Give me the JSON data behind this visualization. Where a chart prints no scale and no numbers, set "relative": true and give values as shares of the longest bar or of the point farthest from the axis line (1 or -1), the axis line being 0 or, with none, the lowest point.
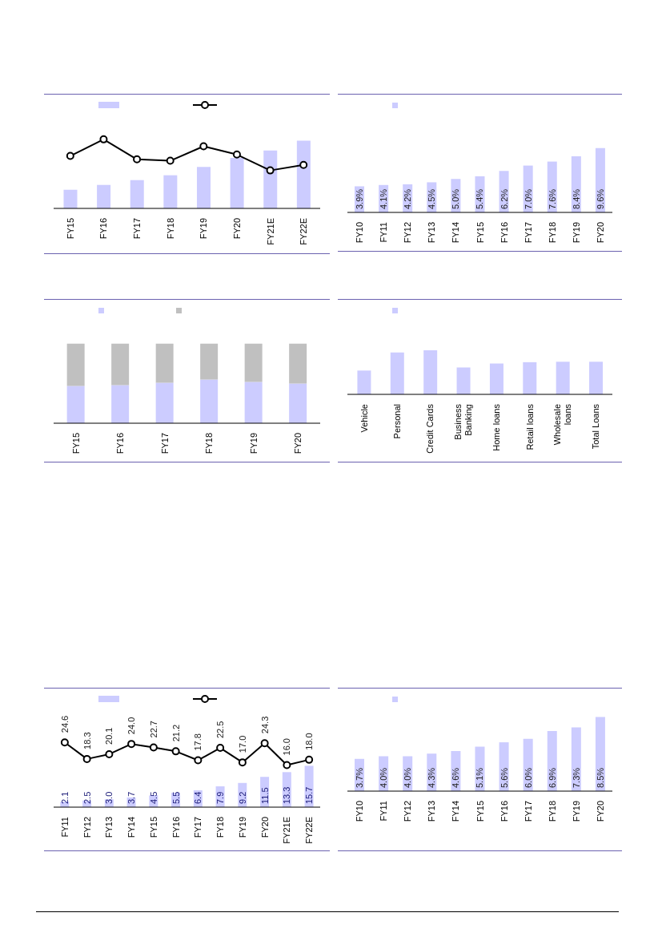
{
  "chart_data": [
    {
      "type": "bar",
      "relative": true,
      "marker": "circle",
      "line_style": "solid",
      "categories": [
        "FY15",
        "FY16",
        "FY17",
        "FY18",
        "FY19",
        "FY20",
        "FY21E",
        "FY22E"
      ],
      "series": [
        {
          "type": "bar",
          "color": "#ccccff",
          "values": [
            0.27,
            0.34,
            0.41,
            0.48,
            0.6,
            0.73,
            0.84,
            0.98
          ]
        },
        {
          "type": "line",
          "color": "#000000",
          "values": [
            0.76,
            1.0,
            0.71,
            0.69,
            0.9,
            0.78,
            0.55,
            0.63
          ]
        }
      ]
    },
    {
      "type": "bar",
      "data_labels": true,
      "tick_labels": "x",
      "categories": [
        "FY10",
        "FY11",
        "FY12",
        "FY13",
        "FY14",
        "FY15",
        "FY16",
        "FY17",
        "FY18",
        "FY19",
        "FY20"
      ],
      "series": [
        {
          "type": "bar",
          "color": "#ccccff",
          "values": [
            3.9,
            4.1,
            4.2,
            4.5,
            5.0,
            5.4,
            6.2,
            7.0,
            7.6,
            8.4,
            9.6
          ],
          "value_labels": [
            "3.9%",
            "4.1%",
            "4.2%",
            "4.5%",
            "5.0%",
            "5.4%",
            "6.2%",
            "7.0%",
            "7.6%",
            "8.4%",
            "9.6%"
          ]
        }
      ]
    },
    {
      "type": "bar",
      "relative": true,
      "stacked": true,
      "categories": [
        "FY15",
        "FY16",
        "FY17",
        "FY18",
        "FY19",
        "FY20"
      ],
      "series": [
        {
          "color": "#ccccff",
          "values": [
            0.47,
            0.48,
            0.51,
            0.55,
            0.52,
            0.5
          ]
        },
        {
          "color": "#c0c0c0",
          "values": [
            0.53,
            0.52,
            0.49,
            0.45,
            0.48,
            0.5
          ]
        }
      ]
    },
    {
      "type": "bar",
      "relative": true,
      "categories": [
        "Vehicle",
        "Personal",
        "Credit Cards",
        "Business Banking",
        "Home loans",
        "Retail loans",
        "Wholesale loans",
        "Total Loans"
      ],
      "series": [
        {
          "color": "#ccccff",
          "values": [
            0.54,
            0.95,
            1.0,
            0.61,
            0.7,
            0.73,
            0.74,
            0.74
          ]
        }
      ]
    },
    {
      "type": "bar",
      "marker": "circle",
      "line_style": "solid",
      "data_labels": true,
      "tick_labels": "x",
      "categories": [
        "FY11",
        "FY12",
        "FY13",
        "FY14",
        "FY15",
        "FY16",
        "FY17",
        "FY18",
        "FY19",
        "FY20",
        "FY21E",
        "FY22E"
      ],
      "series": [
        {
          "type": "bar",
          "color": "#ccccff",
          "values": [
            2.1,
            2.5,
            3.0,
            3.7,
            4.5,
            5.5,
            6.4,
            7.9,
            9.2,
            11.5,
            13.3,
            15.7
          ],
          "value_labels": [
            "2.1",
            "2.5",
            "3.0",
            "3.7",
            "4.5",
            "5.5",
            "6.4",
            "7.9",
            "9.2",
            "11.5",
            "13.3",
            "15.7"
          ]
        },
        {
          "type": "line",
          "color": "#000000",
          "values": [
            24.6,
            18.3,
            20.1,
            24.0,
            22.7,
            21.2,
            17.8,
            22.5,
            17.0,
            24.3,
            16.0,
            18.0
          ],
          "value_labels": [
            "24.6",
            "18.3",
            "20.1",
            "24.0",
            "22.7",
            "21.2",
            "17.8",
            "22.5",
            "17.0",
            "24.3",
            "16.0",
            "18.0"
          ]
        }
      ]
    },
    {
      "type": "bar",
      "data_labels": true,
      "tick_labels": "x",
      "categories": [
        "FY10",
        "FY11",
        "FY12",
        "FY13",
        "FY14",
        "FY15",
        "FY16",
        "FY17",
        "FY18",
        "FY19",
        "FY20"
      ],
      "series": [
        {
          "type": "bar",
          "color": "#ccccff",
          "values": [
            3.7,
            4.0,
            4.0,
            4.3,
            4.6,
            5.1,
            5.6,
            6.0,
            6.9,
            7.3,
            8.5
          ],
          "value_labels": [
            "3.7%",
            "4.0%",
            "4.0%",
            "4.3%",
            "4.6%",
            "5.1%",
            "5.6%",
            "6.0%",
            "6.9%",
            "7.3%",
            "8.5%"
          ]
        }
      ]
    }
  ]
}
